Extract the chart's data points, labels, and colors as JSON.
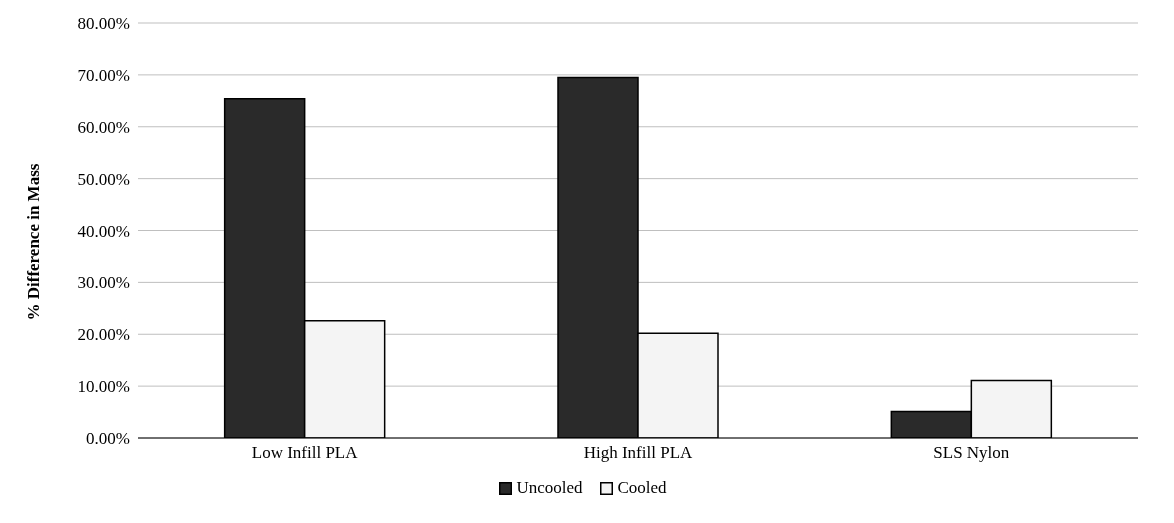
{
  "chart_data": {
    "type": "bar",
    "ylabel": "% Difference in Mass",
    "categories": [
      "Low Infill PLA",
      "High Infill PLA",
      "SLS Nylon"
    ],
    "series": [
      {
        "name": "Uncooled",
        "color": "#2a2a2a",
        "values": [
          65.4,
          69.5,
          5.1
        ]
      },
      {
        "name": "Cooled",
        "color": "#f4f4f4",
        "values": [
          22.6,
          20.2,
          11.1
        ]
      }
    ],
    "ylim": [
      0,
      80
    ],
    "yticks": [
      {
        "value": 0,
        "label": "0.00%"
      },
      {
        "value": 10,
        "label": "10.00%"
      },
      {
        "value": 20,
        "label": "20.00%"
      },
      {
        "value": 30,
        "label": "30.00%"
      },
      {
        "value": 40,
        "label": "40.00%"
      },
      {
        "value": 50,
        "label": "50.00%"
      },
      {
        "value": 60,
        "label": "60.00%"
      },
      {
        "value": 70,
        "label": "70.00%"
      },
      {
        "value": 80,
        "label": "80.00%"
      }
    ],
    "grid": "y",
    "legend": "bottom"
  }
}
